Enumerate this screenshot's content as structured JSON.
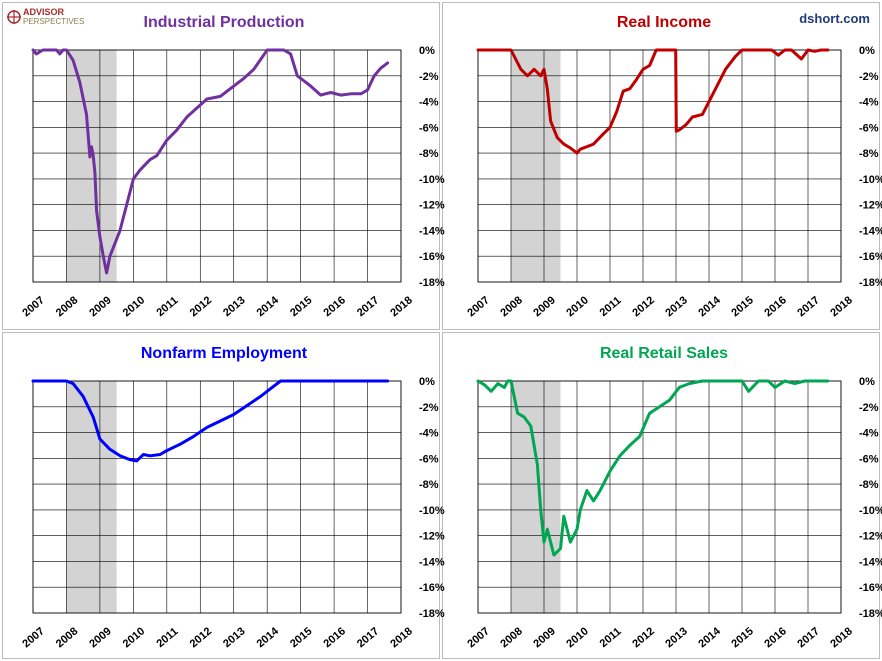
{
  "branding": {
    "advisor_line1": "ADVISOR",
    "advisor_line2": "PERSPECTIVES",
    "site": "dshort.com"
  },
  "colors": {
    "recession_band": "#d3d3d3",
    "grid": "#000000",
    "frame": "#bcbcbc"
  },
  "chart_data": [
    {
      "type": "line",
      "title": "Industrial Production",
      "color": "#7030a0",
      "x_tick_labels": [
        "2007",
        "2008",
        "2009",
        "2010",
        "2011",
        "2012",
        "2013",
        "2014",
        "2015",
        "2016",
        "2017",
        "2018"
      ],
      "y_tick_labels": [
        "0%",
        "-2%",
        "-4%",
        "-6%",
        "-8%",
        "-10%",
        "-12%",
        "-14%",
        "-16%",
        "-18%"
      ],
      "xlim": [
        2007,
        2018
      ],
      "ylim": [
        -18,
        0
      ],
      "recession": [
        2008.0,
        2009.5
      ],
      "grid": "vertical and horizontal",
      "x": [
        2007.0,
        2007.1,
        2007.3,
        2007.5,
        2007.7,
        2007.8,
        2007.9,
        2008.0,
        2008.2,
        2008.4,
        2008.6,
        2008.7,
        2008.75,
        2008.8,
        2008.85,
        2008.9,
        2009.0,
        2009.1,
        2009.2,
        2009.3,
        2009.45,
        2009.6,
        2009.8,
        2010.0,
        2010.2,
        2010.5,
        2010.7,
        2011.0,
        2011.3,
        2011.6,
        2011.9,
        2012.2,
        2012.6,
        2013.0,
        2013.3,
        2013.6,
        2014.0,
        2014.3,
        2014.5,
        2014.7,
        2014.9,
        2015.1,
        2015.3,
        2015.6,
        2015.9,
        2016.2,
        2016.5,
        2016.8,
        2017.0,
        2017.2,
        2017.4,
        2017.5,
        2017.6
      ],
      "y": [
        0,
        -0.3,
        0,
        0,
        0,
        -0.3,
        0,
        0,
        -0.8,
        -2.5,
        -5.0,
        -8.3,
        -7.5,
        -8.2,
        -9.5,
        -12.5,
        -14.5,
        -16.0,
        -17.3,
        -16.0,
        -15.0,
        -14.0,
        -12.0,
        -10.0,
        -9.3,
        -8.5,
        -8.2,
        -7.0,
        -6.2,
        -5.2,
        -4.5,
        -3.8,
        -3.6,
        -2.8,
        -2.2,
        -1.5,
        0,
        0,
        0,
        -0.3,
        -2.0,
        -2.4,
        -2.8,
        -3.5,
        -3.3,
        -3.5,
        -3.4,
        -3.4,
        -3.1,
        -2.0,
        -1.4,
        -1.2,
        -1.0
      ]
    },
    {
      "type": "line",
      "title": "Real Income",
      "color": "#c00000",
      "x_tick_labels": [
        "2007",
        "2008",
        "2009",
        "2010",
        "2011",
        "2012",
        "2013",
        "2014",
        "2015",
        "2016",
        "2017",
        "2018"
      ],
      "y_tick_labels": [
        "0%",
        "-2%",
        "-4%",
        "-6%",
        "-8%",
        "-10%",
        "-12%",
        "-14%",
        "-16%",
        "-18%"
      ],
      "xlim": [
        2007,
        2018
      ],
      "ylim": [
        -18,
        0
      ],
      "recession": [
        2008.0,
        2009.5
      ],
      "grid": "vertical and horizontal",
      "x": [
        2007.0,
        2007.8,
        2008.0,
        2008.3,
        2008.5,
        2008.7,
        2008.9,
        2009.0,
        2009.1,
        2009.2,
        2009.4,
        2009.6,
        2009.8,
        2010.0,
        2010.1,
        2010.3,
        2010.5,
        2010.8,
        2011.0,
        2011.2,
        2011.4,
        2011.6,
        2011.8,
        2012.0,
        2012.2,
        2012.4,
        2012.6,
        2012.8,
        2012.99,
        2013.01,
        2013.1,
        2013.3,
        2013.5,
        2013.8,
        2014.0,
        2014.2,
        2014.5,
        2014.8,
        2015.0,
        2015.3,
        2015.6,
        2015.9,
        2016.1,
        2016.3,
        2016.5,
        2016.8,
        2017.0,
        2017.2,
        2017.4,
        2017.6
      ],
      "y": [
        0,
        0,
        0,
        -1.5,
        -2.0,
        -1.5,
        -2.0,
        -1.5,
        -3.0,
        -5.5,
        -6.8,
        -7.3,
        -7.6,
        -8.0,
        -7.7,
        -7.5,
        -7.3,
        -6.5,
        -6.0,
        -4.8,
        -3.2,
        -3.0,
        -2.3,
        -1.5,
        -1.2,
        0,
        0,
        0,
        0,
        -6.3,
        -6.2,
        -5.8,
        -5.2,
        -5.0,
        -4.0,
        -3.0,
        -1.5,
        -0.5,
        0,
        0,
        0,
        0,
        -0.4,
        0,
        0,
        -0.7,
        0,
        -0.1,
        0,
        0
      ]
    },
    {
      "type": "line",
      "title": "Nonfarm Employment",
      "color": "#0000ff",
      "x_tick_labels": [
        "2007",
        "2008",
        "2009",
        "2010",
        "2011",
        "2012",
        "2013",
        "2014",
        "2015",
        "2016",
        "2017",
        "2018"
      ],
      "y_tick_labels": [
        "0%",
        "-2%",
        "-4%",
        "-6%",
        "-8%",
        "-10%",
        "-12%",
        "-14%",
        "-16%",
        "-18%"
      ],
      "xlim": [
        2007,
        2018
      ],
      "ylim": [
        -18,
        0
      ],
      "recession": [
        2008.0,
        2009.5
      ],
      "grid": "vertical and horizontal",
      "x": [
        2007.0,
        2008.0,
        2008.2,
        2008.5,
        2008.8,
        2009.0,
        2009.3,
        2009.6,
        2009.9,
        2010.1,
        2010.3,
        2010.5,
        2010.8,
        2011.0,
        2011.4,
        2011.8,
        2012.2,
        2012.6,
        2013.0,
        2013.4,
        2013.8,
        2014.1,
        2014.4,
        2015.0,
        2016.0,
        2017.0,
        2017.6
      ],
      "y": [
        0,
        0,
        -0.2,
        -1.2,
        -2.8,
        -4.5,
        -5.3,
        -5.8,
        -6.1,
        -6.2,
        -5.7,
        -5.8,
        -5.7,
        -5.4,
        -4.9,
        -4.3,
        -3.6,
        -3.1,
        -2.6,
        -1.9,
        -1.2,
        -0.6,
        0,
        0,
        0,
        0,
        0
      ]
    },
    {
      "type": "line",
      "title": "Real Retail Sales",
      "color": "#00a651",
      "x_tick_labels": [
        "2007",
        "2008",
        "2009",
        "2010",
        "2011",
        "2012",
        "2013",
        "2014",
        "2015",
        "2016",
        "2017",
        "2018"
      ],
      "y_tick_labels": [
        "0%",
        "-2%",
        "-4%",
        "-6%",
        "-8%",
        "-10%",
        "-12%",
        "-14%",
        "-16%",
        "-18%"
      ],
      "xlim": [
        2007,
        2018
      ],
      "ylim": [
        -18,
        0
      ],
      "recession": [
        2008.0,
        2009.5
      ],
      "grid": "vertical and horizontal",
      "x": [
        2007.0,
        2007.2,
        2007.4,
        2007.6,
        2007.8,
        2007.9,
        2008.0,
        2008.2,
        2008.4,
        2008.6,
        2008.8,
        2008.9,
        2009.0,
        2009.1,
        2009.3,
        2009.5,
        2009.6,
        2009.8,
        2010.0,
        2010.1,
        2010.3,
        2010.5,
        2010.7,
        2011.0,
        2011.3,
        2011.6,
        2011.9,
        2012.2,
        2012.5,
        2012.8,
        2013.1,
        2013.4,
        2013.8,
        2014.2,
        2014.6,
        2015.0,
        2015.2,
        2015.5,
        2015.8,
        2016.0,
        2016.3,
        2016.6,
        2016.9,
        2017.2,
        2017.5,
        2017.6
      ],
      "y": [
        0,
        -0.3,
        -0.8,
        -0.2,
        -0.5,
        0,
        0,
        -2.5,
        -2.8,
        -3.5,
        -6.5,
        -10.0,
        -12.5,
        -11.5,
        -13.5,
        -13.0,
        -10.5,
        -12.5,
        -11.5,
        -10.0,
        -8.5,
        -9.3,
        -8.5,
        -7.0,
        -5.8,
        -5.0,
        -4.3,
        -2.5,
        -2.0,
        -1.5,
        -0.5,
        -0.2,
        0,
        0,
        0,
        0,
        -0.8,
        0,
        0,
        -0.5,
        0,
        -0.2,
        0,
        0,
        0,
        0
      ]
    }
  ]
}
